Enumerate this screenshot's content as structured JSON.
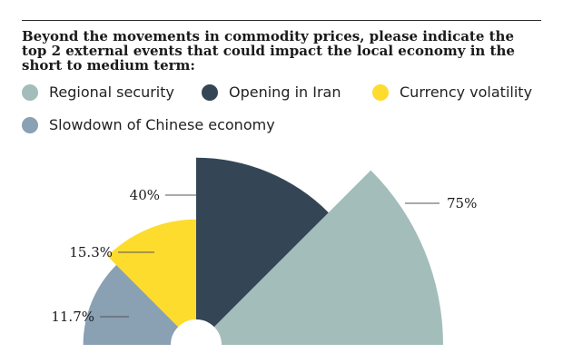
{
  "question": "Beyond the movements in commodity prices, please indicate the top 2 external events that could impact the local economy in the short to medium term:",
  "chart_data": {
    "type": "pie",
    "variant": "polar-area",
    "categories": [
      "Regional security",
      "Opening in Iran",
      "Currency volatility",
      "Slowdown of Chinese economy"
    ],
    "values": [
      75,
      40,
      15.3,
      11.7
    ],
    "value_labels": [
      "75%",
      "40%",
      "15.3%",
      "11.7%"
    ],
    "colors": [
      "#a3bdbb",
      "#344655",
      "#fddc2e",
      "#8aa0b3"
    ],
    "legend_placement": "top",
    "grid": false
  }
}
